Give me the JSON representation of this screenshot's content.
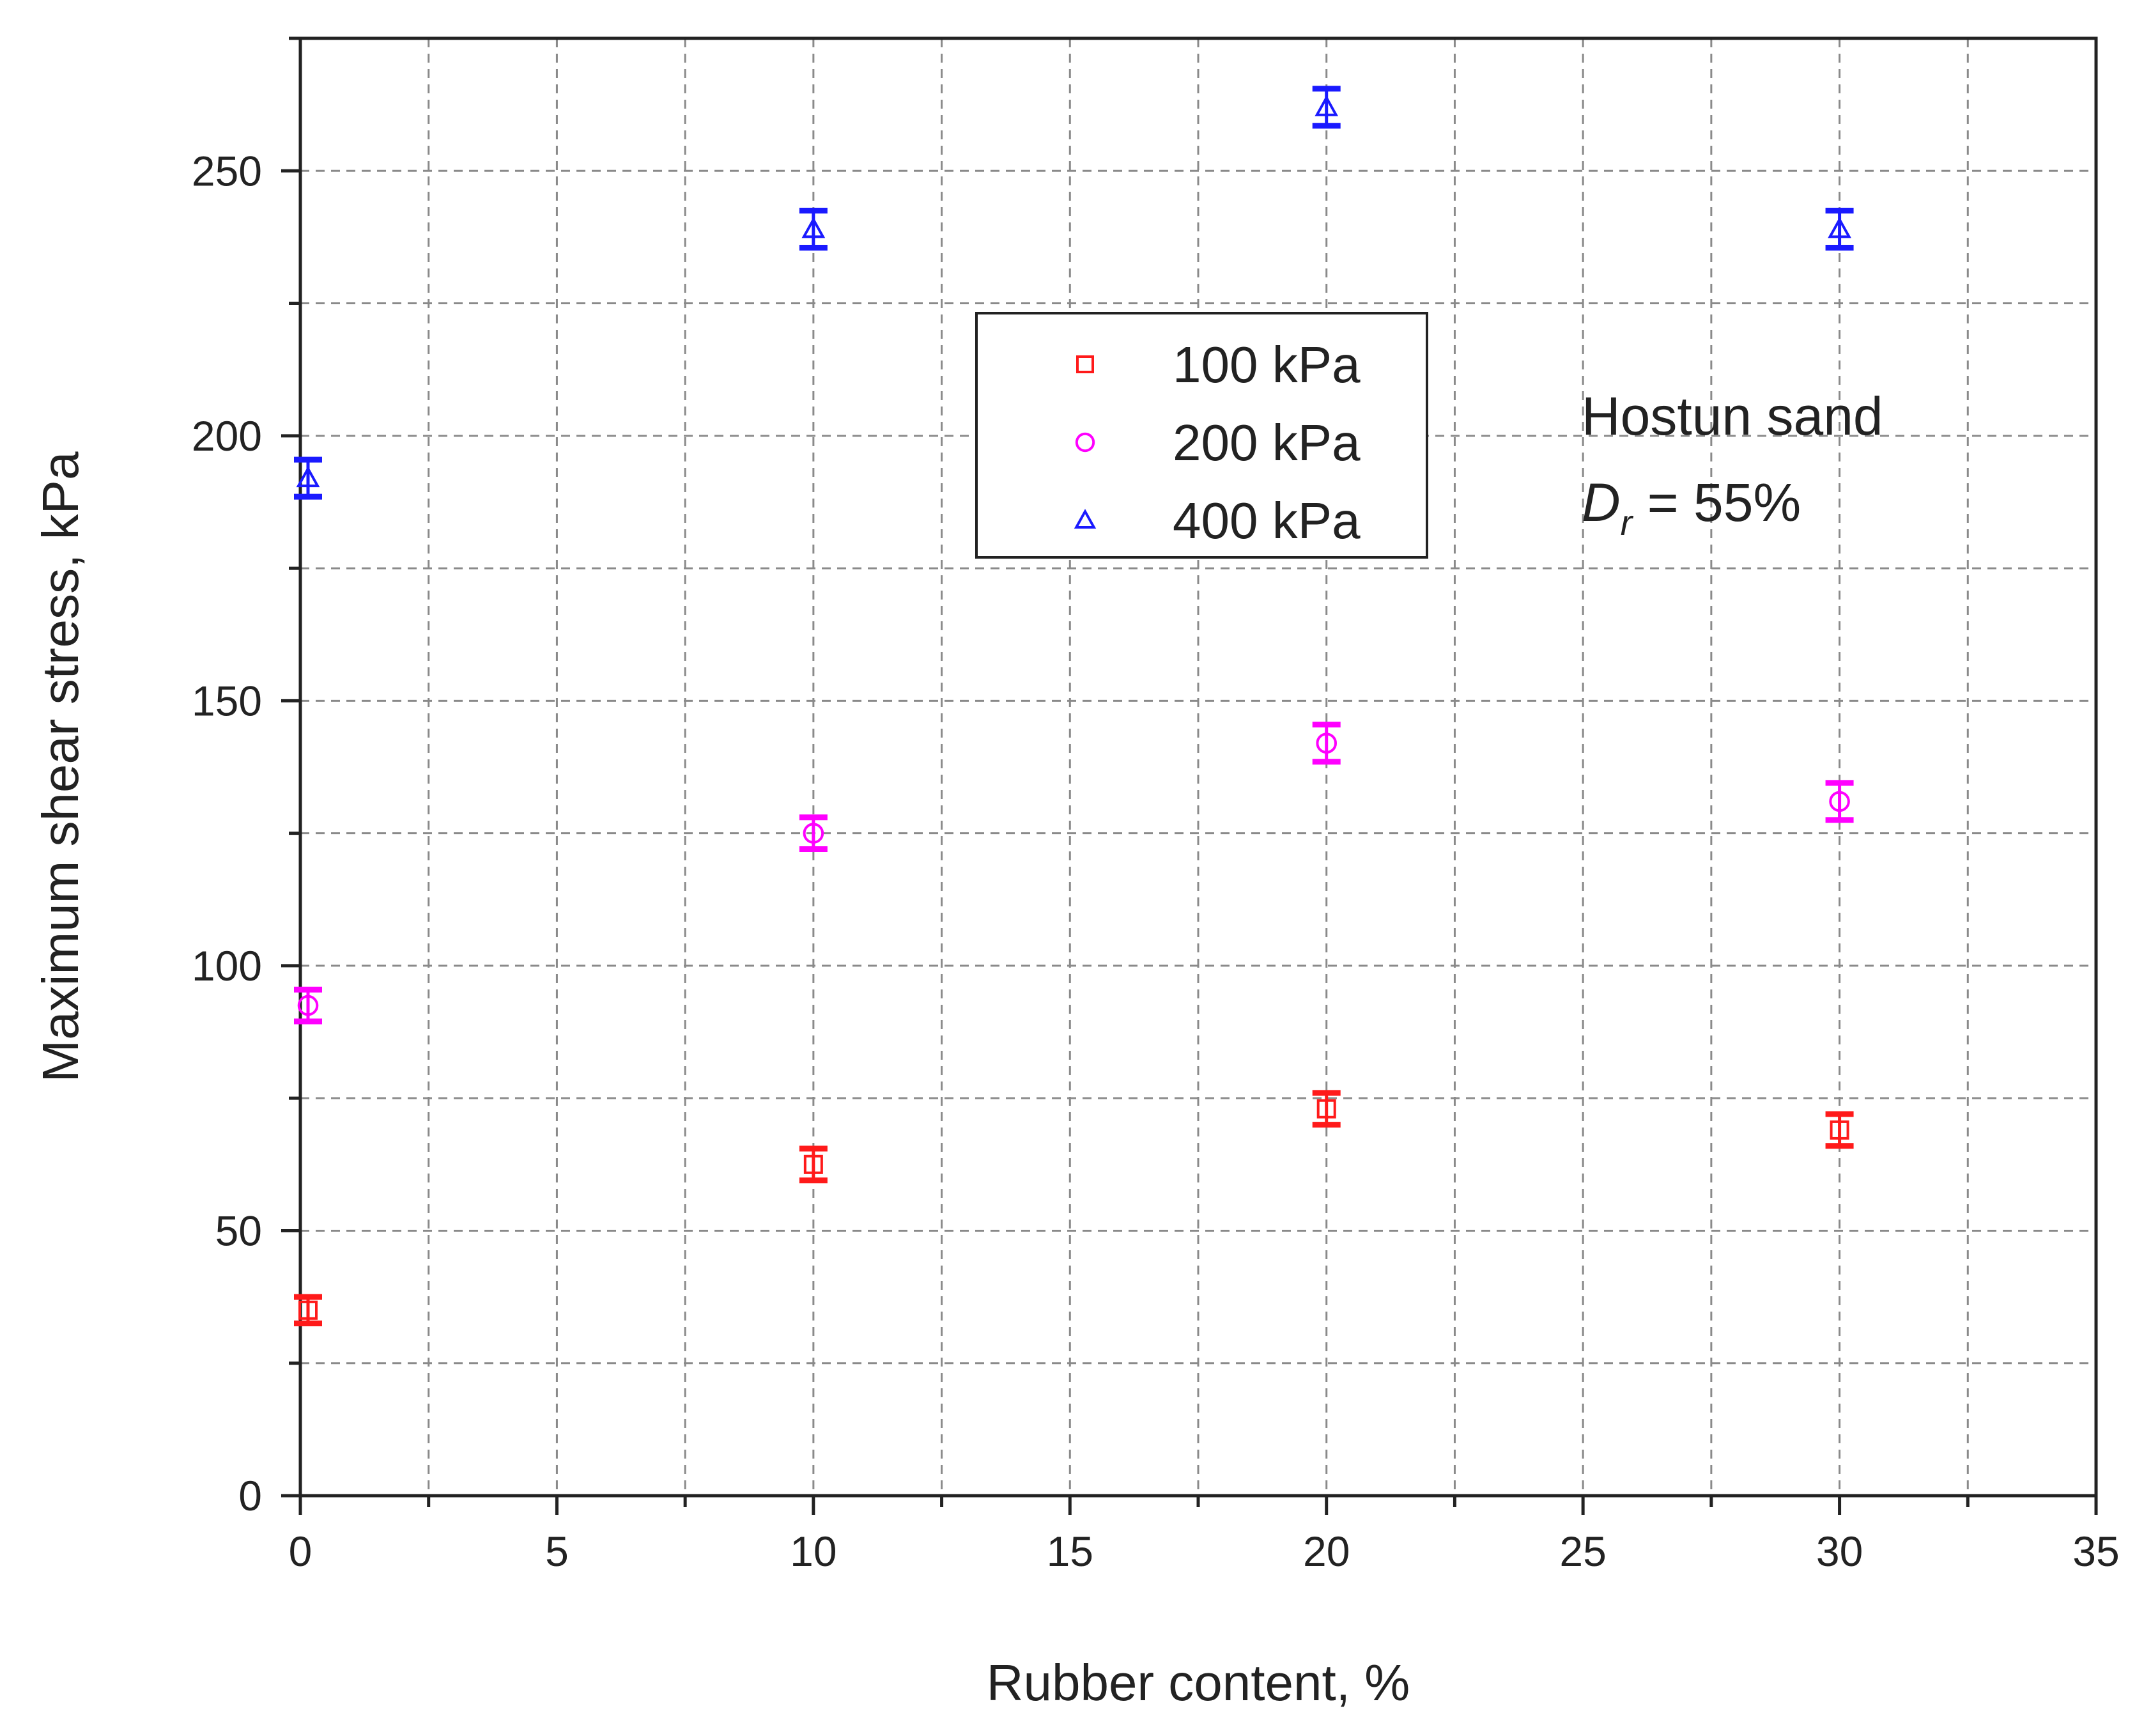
{
  "chart_data": {
    "type": "scatter",
    "title": "",
    "xlabel": "Rubber content, %",
    "ylabel": "Maximum shear stress, kPa",
    "xlim": [
      0,
      35
    ],
    "ylim": [
      0,
      275
    ],
    "x_ticks": [
      0,
      5,
      10,
      15,
      20,
      25,
      30,
      35
    ],
    "y_ticks": [
      0,
      50,
      100,
      150,
      200,
      250
    ],
    "grid": true,
    "legend_position": "upper-center",
    "annotation": {
      "line1": "Hostun sand",
      "line2_symbol": "D",
      "line2_subscript": "r",
      "line2_rest": " = 55%"
    },
    "series": [
      {
        "name": "100 kPa",
        "marker": "square",
        "color": "#ff1a1a",
        "x": [
          0,
          10,
          20,
          30
        ],
        "y": [
          35,
          62.5,
          73,
          69
        ],
        "err": [
          2.5,
          3,
          3,
          3
        ]
      },
      {
        "name": "200 kPa",
        "marker": "circle",
        "color": "#ff00ff",
        "x": [
          0,
          10,
          20,
          30
        ],
        "y": [
          92.5,
          125,
          142,
          131
        ],
        "err": [
          3,
          3,
          3.5,
          3.5
        ]
      },
      {
        "name": "400 kPa",
        "marker": "triangle",
        "color": "#1a1aff",
        "x": [
          0,
          10,
          20,
          30
        ],
        "y": [
          192,
          239,
          262,
          239
        ],
        "err": [
          3.5,
          3.5,
          3.5,
          3.5
        ]
      }
    ]
  }
}
